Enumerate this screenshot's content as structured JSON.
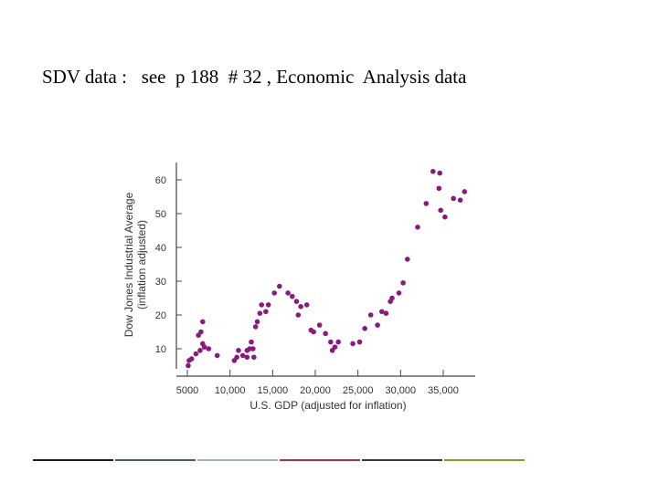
{
  "slide": {
    "title": "SDV data :   see  p 188  # 32 , Economic  Analysis data"
  },
  "colors": {
    "point": "#8b1a7e",
    "axis": "#444444",
    "footer": [
      "#1a1a1a",
      "#4a5a6e",
      "#9fb3c8",
      "#a8323e",
      "#3a3a2a",
      "#8a9a2a"
    ]
  },
  "chart_data": {
    "type": "scatter",
    "title": "",
    "xlabel": "U.S. GDP (adjusted for inflation)",
    "ylabel_lines": [
      "Dow Jones Industrial Average",
      "(inflation adjusted)"
    ],
    "xlim": [
      4300,
      38000
    ],
    "ylim": [
      4,
      64
    ],
    "x_ticks": [
      {
        "value": 5000,
        "label": "5000"
      },
      {
        "value": 10000,
        "label": "10,000"
      },
      {
        "value": 15000,
        "label": "15,000"
      },
      {
        "value": 20000,
        "label": "20,000"
      },
      {
        "value": 25000,
        "label": "25,000"
      },
      {
        "value": 30000,
        "label": "30,000"
      },
      {
        "value": 35000,
        "label": "35,000"
      }
    ],
    "y_ticks": [
      {
        "value": 10,
        "label": "10"
      },
      {
        "value": 20,
        "label": "20"
      },
      {
        "value": 30,
        "label": "30"
      },
      {
        "value": 40,
        "label": "40"
      },
      {
        "value": 50,
        "label": "50"
      },
      {
        "value": 60,
        "label": "60"
      }
    ],
    "points": [
      [
        5100,
        5
      ],
      [
        5200,
        6.5
      ],
      [
        5500,
        7
      ],
      [
        6000,
        8.5
      ],
      [
        6300,
        14
      ],
      [
        6600,
        15
      ],
      [
        6800,
        18
      ],
      [
        6500,
        9.5
      ],
      [
        6800,
        11.5
      ],
      [
        7000,
        10.5
      ],
      [
        7500,
        10
      ],
      [
        8500,
        8
      ],
      [
        10500,
        6.5
      ],
      [
        10800,
        7.5
      ],
      [
        11000,
        9.5
      ],
      [
        11500,
        8
      ],
      [
        12000,
        9.5
      ],
      [
        12000,
        7.5
      ],
      [
        12300,
        10
      ],
      [
        12500,
        12
      ],
      [
        12700,
        10
      ],
      [
        12800,
        7.5
      ],
      [
        13000,
        16.5
      ],
      [
        13200,
        18
      ],
      [
        13500,
        20.5
      ],
      [
        13700,
        23
      ],
      [
        14200,
        21
      ],
      [
        14500,
        23
      ],
      [
        15200,
        26.5
      ],
      [
        15800,
        28.5
      ],
      [
        16800,
        26.5
      ],
      [
        17300,
        25.5
      ],
      [
        17800,
        24
      ],
      [
        18000,
        20
      ],
      [
        18300,
        22.5
      ],
      [
        19000,
        23
      ],
      [
        19500,
        15.5
      ],
      [
        19800,
        15
      ],
      [
        20500,
        17
      ],
      [
        21200,
        14.5
      ],
      [
        21800,
        12
      ],
      [
        22000,
        9.5
      ],
      [
        22300,
        10.5
      ],
      [
        22700,
        12
      ],
      [
        24400,
        11.5
      ],
      [
        25200,
        12
      ],
      [
        25800,
        16
      ],
      [
        26500,
        20
      ],
      [
        27300,
        17
      ],
      [
        27800,
        21
      ],
      [
        28300,
        20.5
      ],
      [
        28800,
        24
      ],
      [
        29000,
        25
      ],
      [
        29800,
        26.5
      ],
      [
        30300,
        29.5
      ],
      [
        30800,
        36.5
      ],
      [
        32000,
        46
      ],
      [
        33000,
        53
      ],
      [
        33800,
        62.5
      ],
      [
        34500,
        57.5
      ],
      [
        34600,
        62
      ],
      [
        34700,
        51
      ],
      [
        35200,
        49
      ],
      [
        36200,
        54.5
      ],
      [
        37000,
        54
      ],
      [
        37500,
        56.5
      ]
    ]
  }
}
